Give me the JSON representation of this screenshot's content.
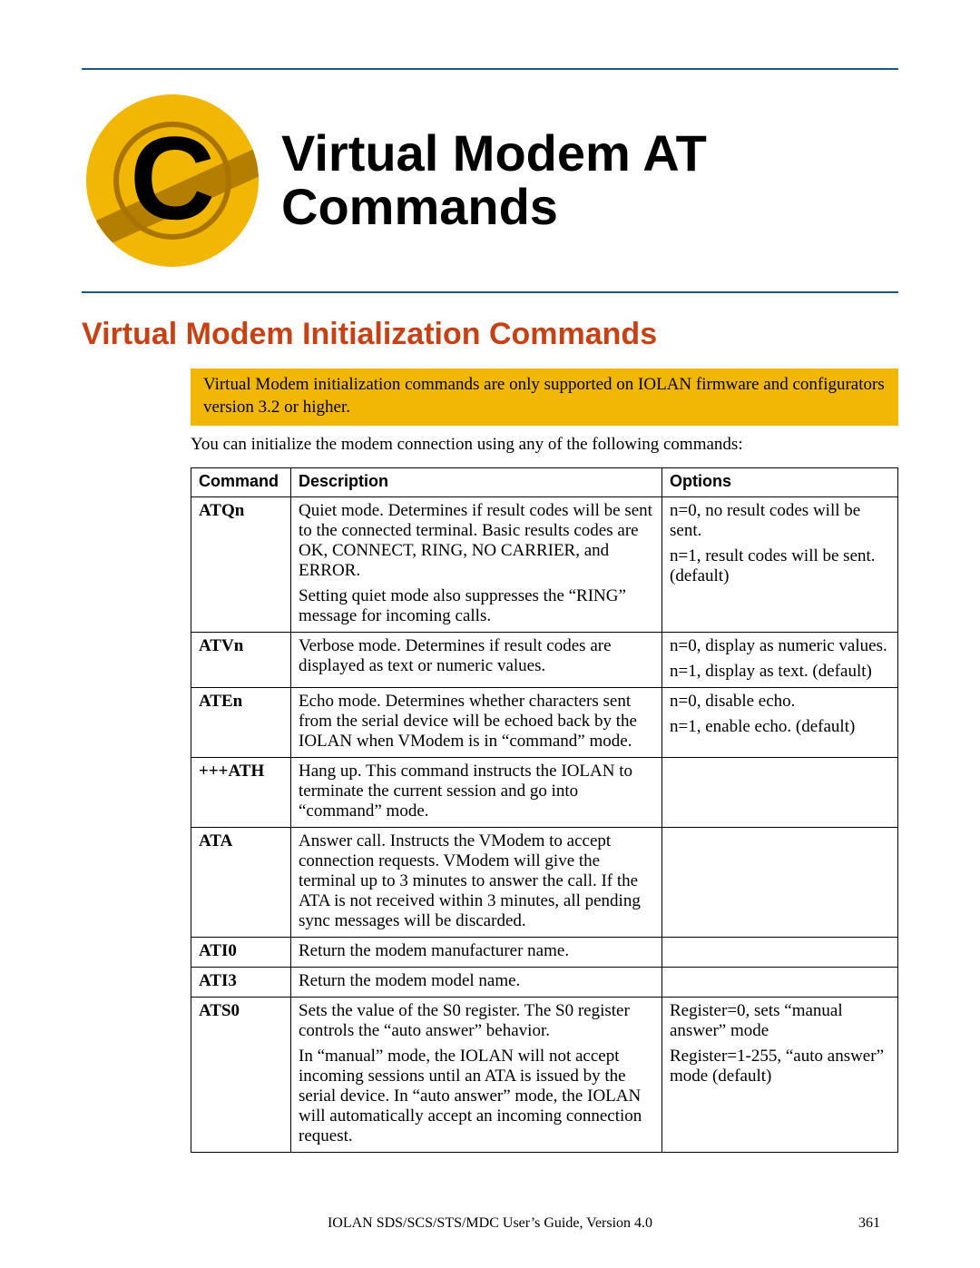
{
  "chapter": {
    "badge_letter": "C",
    "title_line1": "Virtual Modem AT",
    "title_line2": "Commands"
  },
  "section_title": "Virtual Modem Initialization Commands",
  "note_text": "Virtual Modem initialization commands are only supported on IOLAN firmware and configurators version 3.2 or higher.",
  "intro_text": "You can initialize the modem connection using any of the following commands:",
  "table": {
    "headers": {
      "c1": "Command",
      "c2": "Description",
      "c3": "Options"
    },
    "rows": [
      {
        "cmd": "ATQn",
        "desc": [
          "Quiet mode. Determines if result codes will be sent to the connected terminal. Basic results codes are OK, CONNECT, RING, NO CARRIER, and ERROR.",
          "Setting quiet mode also suppresses the “RING” message for incoming calls."
        ],
        "opts": [
          "n=0, no result codes will be sent.",
          "n=1, result codes will be sent. (default)"
        ]
      },
      {
        "cmd": "ATVn",
        "desc": [
          "Verbose mode. Determines if result codes are displayed as text or numeric values."
        ],
        "opts": [
          "n=0, display as numeric values.",
          "n=1, display as text. (default)"
        ]
      },
      {
        "cmd": "ATEn",
        "desc": [
          "Echo mode. Determines whether characters sent from the serial device will be echoed back by the IOLAN when VModem is in “command” mode."
        ],
        "opts": [
          "n=0, disable echo.",
          "n=1, enable echo. (default)"
        ]
      },
      {
        "cmd": "+++ATH",
        "desc": [
          "Hang up. This command instructs the IOLAN to terminate the current session and go into “command” mode."
        ],
        "opts": []
      },
      {
        "cmd": "ATA",
        "desc": [
          "Answer call. Instructs the VModem to accept connection requests. VModem will give the terminal up to 3 minutes to answer the call. If the ATA is not received within 3 minutes, all pending sync messages will be discarded."
        ],
        "opts": []
      },
      {
        "cmd": "ATI0",
        "desc": [
          "Return the modem manufacturer name."
        ],
        "opts": []
      },
      {
        "cmd": "ATI3",
        "desc": [
          "Return the modem model name."
        ],
        "opts": []
      },
      {
        "cmd": "ATS0",
        "desc": [
          "Sets the value of the S0 register. The S0 register controls the “auto answer” behavior.",
          "In “manual” mode, the IOLAN will not accept incoming sessions until an ATA is issued by the serial device. In “auto answer” mode, the IOLAN will automatically accept an incoming connection request."
        ],
        "opts": [
          "Register=0, sets “manual answer” mode",
          "Register=1-255, “auto answer” mode (default)"
        ]
      }
    ]
  },
  "footer_text": "IOLAN SDS/SCS/STS/MDC User’s Guide, Version 4.0",
  "page_number": "361",
  "colors": {
    "rule": "#1a5a8a",
    "section": "#c64215",
    "badge_bg": "#f2b705",
    "badge_dark": "#a97400"
  }
}
